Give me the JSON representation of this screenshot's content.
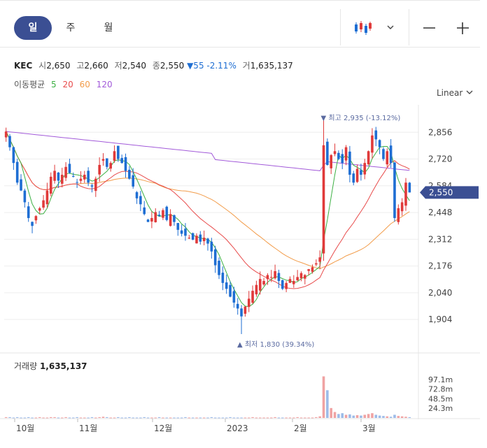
{
  "tabs": [
    {
      "label": "일",
      "active": true
    },
    {
      "label": "주",
      "active": false
    },
    {
      "label": "월",
      "active": false
    }
  ],
  "toolbar": {
    "candle_icon": "candlestick-icon",
    "dropdown_icon": "chevron-down-icon",
    "zoom_out_icon": "minus-icon",
    "zoom_in_icon": "plus-icon"
  },
  "info": {
    "name": "KEC",
    "open_label": "시",
    "open": "2,650",
    "high_label": "고",
    "high": "2,660",
    "low_label": "저",
    "low": "2,540",
    "close_label": "종",
    "close": "2,550",
    "change": "▼55 -2.11%",
    "volume_label": "거",
    "volume": "1,635,137"
  },
  "ma_legend": {
    "label": "이동평균",
    "periods": [
      {
        "p": "5",
        "color": "#3cb043"
      },
      {
        "p": "20",
        "color": "#e84c4c"
      },
      {
        "p": "60",
        "color": "#f29c4a"
      },
      {
        "p": "120",
        "color": "#a25ad9"
      }
    ]
  },
  "scale_label": "Linear",
  "colors": {
    "up": "#e03a3a",
    "down": "#1e6ed3",
    "accent": "#3b4f93"
  },
  "chart_data": {
    "type": "candlestick",
    "yticks": [
      "2,856",
      "2,720",
      "2,584",
      "2,448",
      "2,312",
      "2,176",
      "2,040",
      "1,904"
    ],
    "ylim": [
      1830,
      2960
    ],
    "last_price": "2,550",
    "xticks": [
      "10월",
      "11월",
      "12월",
      "2023",
      "2월",
      "3월"
    ],
    "high_annotation": "▼ 최고 2,935 (-13.12%)",
    "low_annotation": "▲ 최저 1,830 (39.34%)",
    "closes": [
      2860,
      2780,
      2700,
      2600,
      2560,
      2500,
      2420,
      2380,
      2430,
      2470,
      2510,
      2560,
      2630,
      2660,
      2610,
      2640,
      2680,
      2650,
      2630,
      2600,
      2620,
      2640,
      2600,
      2580,
      2620,
      2690,
      2720,
      2680,
      2700,
      2760,
      2720,
      2700,
      2660,
      2620,
      2580,
      2520,
      2490,
      2440,
      2400,
      2420,
      2450,
      2430,
      2460,
      2410,
      2440,
      2400,
      2360,
      2340,
      2330,
      2320,
      2310,
      2330,
      2300,
      2320,
      2290,
      2250,
      2180,
      2130,
      2090,
      2060,
      2020,
      1990,
      1960,
      1920,
      1970,
      2010,
      2050,
      2080,
      2110,
      2100,
      2130,
      2120,
      2150,
      2100,
      2060,
      2090,
      2110,
      2100,
      2120,
      2140,
      2130,
      2160,
      2170,
      2190,
      2220,
      2790,
      2690,
      2740,
      2760,
      2720,
      2700,
      2780,
      2640,
      2600,
      2670,
      2640,
      2700,
      2760,
      2840,
      2820,
      2780,
      2720,
      2760,
      2700,
      2420,
      2470,
      2500,
      2600,
      2550
    ],
    "volume": {
      "label": "거래량",
      "value": "1,635,137",
      "yticks": [
        "97.1m",
        "72.8m",
        "48.5m",
        "24.3m"
      ],
      "max": 120,
      "values": [
        2,
        2,
        1,
        2,
        1,
        1,
        2,
        1,
        1,
        2,
        1,
        1,
        2,
        2,
        1,
        1,
        2,
        1,
        1,
        2,
        1,
        1,
        1,
        2,
        1,
        2,
        3,
        2,
        1,
        1,
        2,
        1,
        1,
        2,
        1,
        1,
        1,
        2,
        1,
        1,
        1,
        2,
        1,
        1,
        1,
        1,
        1,
        1,
        2,
        1,
        1,
        1,
        1,
        1,
        1,
        2,
        1,
        1,
        1,
        1,
        2,
        1,
        1,
        1,
        1,
        1,
        2,
        1,
        1,
        1,
        1,
        1,
        2,
        1,
        1,
        1,
        1,
        1,
        2,
        1,
        1,
        1,
        1,
        2,
        4,
        105,
        70,
        25,
        15,
        10,
        12,
        8,
        9,
        6,
        7,
        6,
        8,
        10,
        12,
        8,
        6,
        5,
        4,
        3,
        8,
        5,
        4,
        3,
        2
      ]
    }
  }
}
